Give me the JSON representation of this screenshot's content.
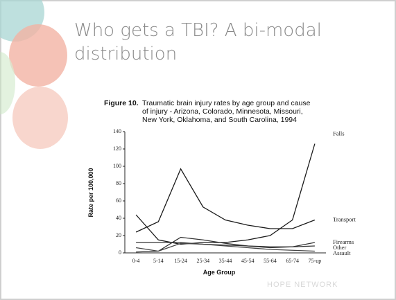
{
  "slide": {
    "title_lines": [
      "Who gets a TBI?  A bi-modal",
      "distribution"
    ],
    "logo": "HOPE NETWORK"
  },
  "chart_data": {
    "type": "line",
    "figure_label": "Figure 10.",
    "title_lines": [
      "Traumatic brain injury rates by age group and cause",
      "of injury - Arizona, Colorado, Minnesota, Missouri,",
      "New York, Oklahoma, and South Carolina, 1994"
    ],
    "x_label": "Age Group",
    "y_label": "Rate per 100,000",
    "categories": [
      "0-4",
      "5-14",
      "15-24",
      "25-34",
      "35-44",
      "45-54",
      "55-64",
      "65-74",
      "75-up"
    ],
    "ylim": [
      0,
      140
    ],
    "yticks": [
      0,
      20,
      40,
      60,
      80,
      100,
      120,
      140
    ],
    "grid": false,
    "series": [
      {
        "name": "Falls",
        "color": "#1a1a1a",
        "values": [
          44,
          15,
          10,
          12,
          12,
          15,
          20,
          38,
          126
        ]
      },
      {
        "name": "Transport",
        "color": "#1a1a1a",
        "values": [
          24,
          36,
          97,
          53,
          38,
          32,
          28,
          28,
          38
        ]
      },
      {
        "name": "Firearms",
        "color": "#333333",
        "values": [
          1,
          2,
          18,
          15,
          11,
          8,
          6,
          7,
          12
        ]
      },
      {
        "name": "Other",
        "color": "#333333",
        "values": [
          12,
          12,
          12,
          10,
          9,
          8,
          7,
          7,
          8
        ]
      },
      {
        "name": "Assault",
        "color": "#444444",
        "values": [
          6,
          2,
          11,
          10,
          8,
          6,
          4,
          3,
          2
        ]
      }
    ]
  }
}
